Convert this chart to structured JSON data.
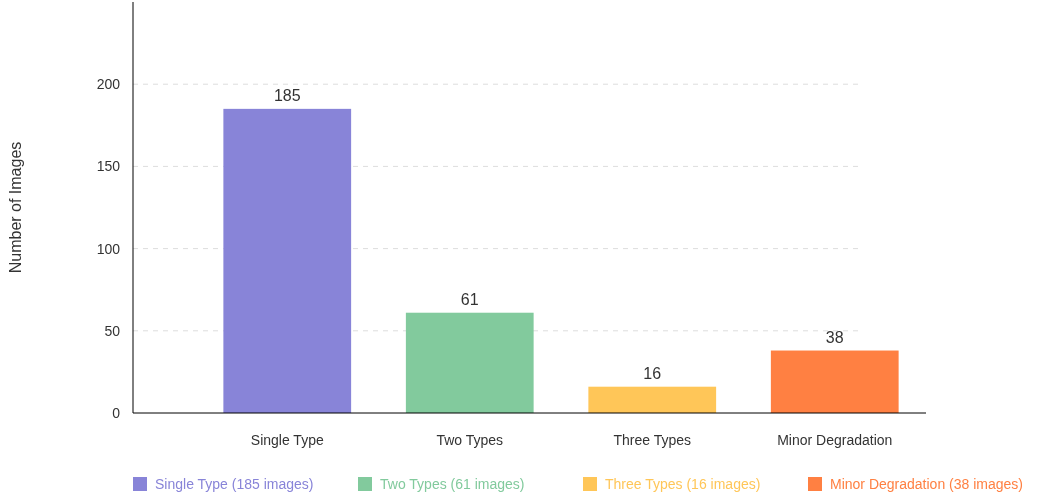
{
  "chart_data": {
    "type": "bar",
    "ylabel": "Number of Images",
    "categories": [
      "Single Type",
      "Two Types",
      "Three Types",
      "Minor Degradation"
    ],
    "series": [
      {
        "name": "Single Type (185 images)",
        "color": "#8884d8",
        "values": [
          185,
          null,
          null,
          null
        ]
      },
      {
        "name": "Two Types (61 images)",
        "color": "#82ca9d",
        "values": [
          null,
          61,
          null,
          null
        ]
      },
      {
        "name": "Three Types (16 images)",
        "color": "#ffc658",
        "values": [
          null,
          null,
          16,
          null
        ]
      },
      {
        "name": "Minor Degradation (38 images)",
        "color": "#ff8042",
        "values": [
          null,
          null,
          null,
          38
        ]
      }
    ],
    "ylim": [
      0,
      250
    ],
    "yticks": [
      0,
      50,
      100,
      150,
      200
    ],
    "grid": "y",
    "legend": "bottom",
    "data_labels": true
  }
}
